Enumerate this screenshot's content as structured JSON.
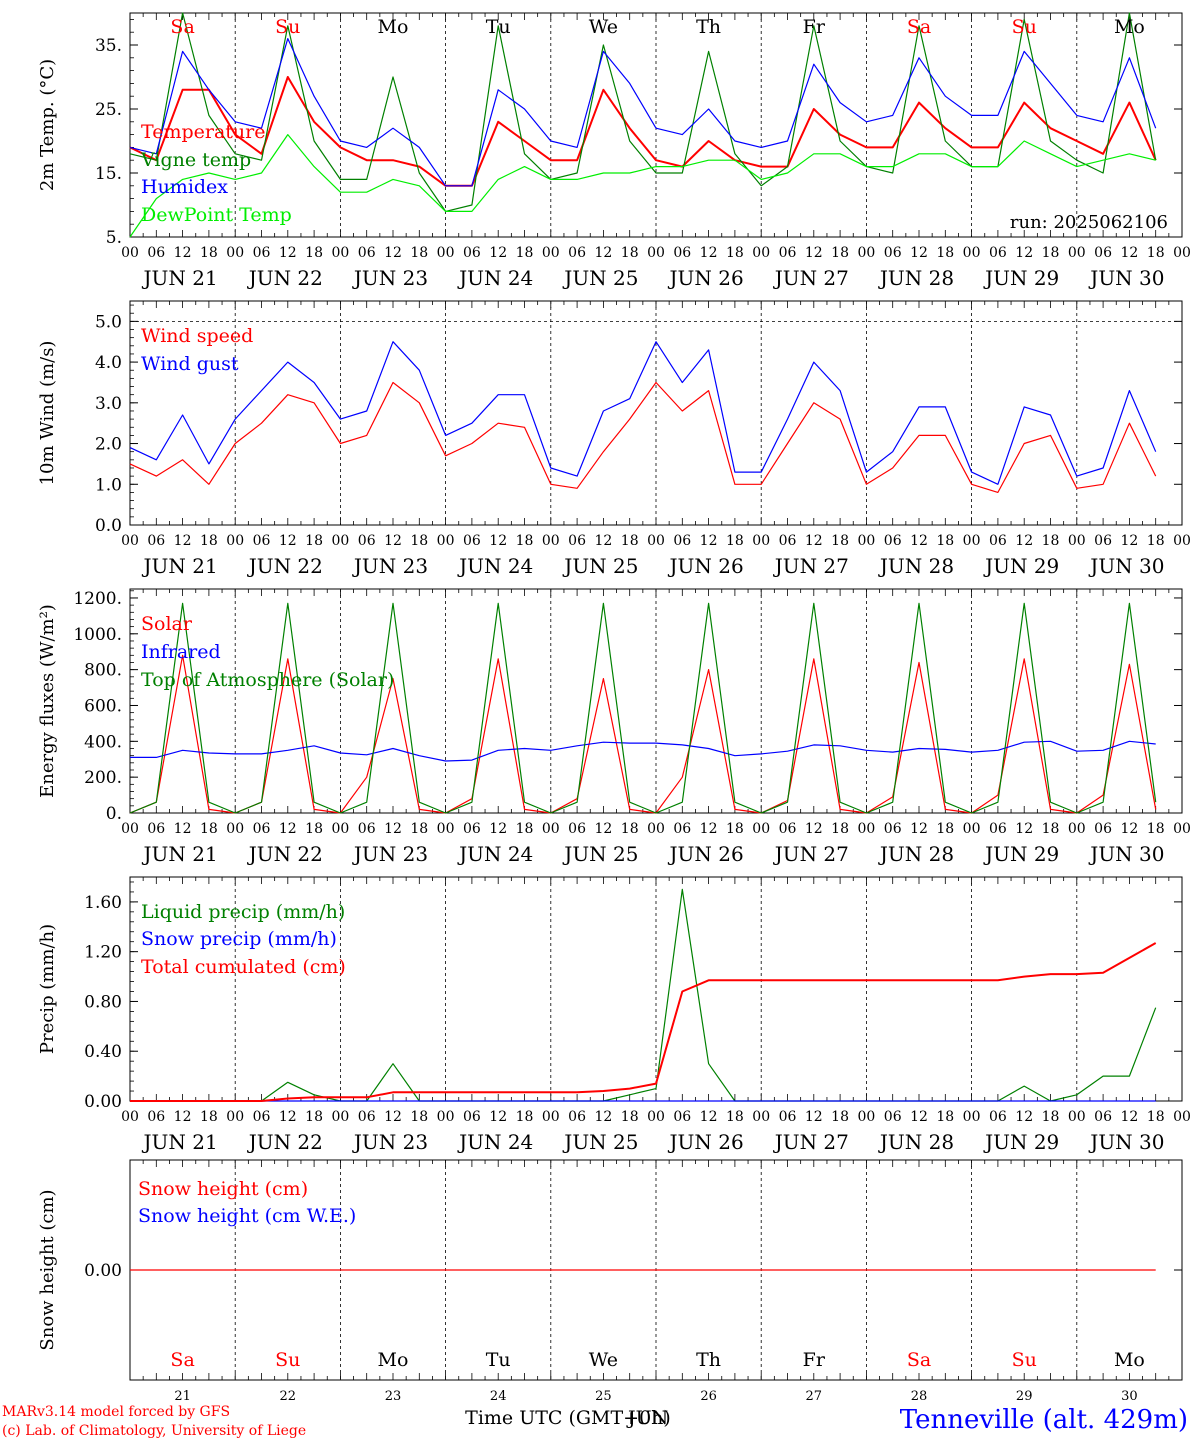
{
  "x_axis": {
    "hour_ticks": [
      "00",
      "06",
      "12",
      "18"
    ],
    "final_tick": "00",
    "days": [
      "JUN 21",
      "JUN 22",
      "JUN 23",
      "JUN 24",
      "JUN 25",
      "JUN 26",
      "JUN 27",
      "JUN 28",
      "JUN 29",
      "JUN 30"
    ],
    "weekdays": [
      "Sa",
      "Su",
      "Mo",
      "Tu",
      "We",
      "Th",
      "Fr",
      "Sa",
      "Su",
      "Mo"
    ],
    "weekend": [
      true,
      true,
      false,
      false,
      false,
      false,
      false,
      true,
      true,
      false
    ],
    "day_numbers": [
      "21",
      "22",
      "23",
      "24",
      "25",
      "26",
      "27",
      "28",
      "29",
      "30"
    ],
    "title": "Time UTC (GMT+0h)",
    "overlap_text": "JUN"
  },
  "footer": {
    "model_line": "MARv3.14 model forced by GFS",
    "credit_line": "(c) Lab. of Climatology, University of Liege",
    "station": "Tenneville (alt. 429m)"
  },
  "colors": {
    "red": "#ff0000",
    "green": "#008000",
    "blue": "#0000ff",
    "lightgreen": "#00ee00"
  },
  "chart_data": [
    {
      "id": "temp",
      "type": "line",
      "ylabel": "2m Temp. (°C)",
      "ylim": [
        5,
        40
      ],
      "yticks": [
        "5.",
        "15.",
        "25.",
        "35."
      ],
      "ytick_values": [
        5,
        15,
        25,
        35
      ],
      "run_label": "run: 2025062106",
      "x_unit": "hours since JUN 21 00 UTC, 6-hourly",
      "series": [
        {
          "name": "Temperature",
          "color": "red",
          "values": [
            19,
            17,
            28,
            28,
            21,
            18,
            30,
            23,
            19,
            17,
            17,
            16,
            13,
            13,
            23,
            20,
            17,
            17,
            28,
            22,
            17,
            16,
            20,
            17,
            16,
            16,
            25,
            21,
            19,
            19,
            26,
            22,
            19,
            19,
            26,
            22,
            20,
            18,
            26,
            17
          ]
        },
        {
          "name": "Vigne temp",
          "color": "green",
          "values": [
            18,
            17,
            40,
            24,
            18,
            17,
            38,
            20,
            14,
            14,
            30,
            15,
            9,
            10,
            38,
            18,
            14,
            15,
            35,
            20,
            15,
            15,
            34,
            18,
            13,
            16,
            38,
            20,
            16,
            15,
            38,
            20,
            16,
            16,
            39,
            20,
            17,
            15,
            40,
            17
          ]
        },
        {
          "name": "Humidex",
          "color": "blue",
          "values": [
            19,
            18,
            34,
            28,
            23,
            22,
            36,
            27,
            20,
            19,
            22,
            19,
            13,
            13,
            28,
            25,
            20,
            19,
            34,
            29,
            22,
            21,
            25,
            20,
            19,
            20,
            32,
            26,
            23,
            24,
            33,
            27,
            24,
            24,
            34,
            29,
            24,
            23,
            33,
            22
          ]
        },
        {
          "name": "DewPoint Temp",
          "color": "lightgreen",
          "values": [
            5,
            11,
            14,
            15,
            14,
            15,
            21,
            16,
            12,
            12,
            14,
            13,
            9,
            9,
            14,
            16,
            14,
            14,
            15,
            15,
            16,
            16,
            17,
            17,
            14,
            15,
            18,
            18,
            16,
            16,
            18,
            18,
            16,
            16,
            20,
            18,
            16,
            17,
            18,
            17
          ]
        }
      ]
    },
    {
      "id": "wind",
      "type": "line",
      "ylabel": "10m Wind (m/s)",
      "ylim": [
        0,
        5.5
      ],
      "yticks": [
        "0.0",
        "1.0",
        "2.0",
        "3.0",
        "4.0",
        "5.0"
      ],
      "ytick_values": [
        0,
        1,
        2,
        3,
        4,
        5
      ],
      "dashed_reference": 5,
      "series": [
        {
          "name": "Wind speed",
          "color": "red",
          "values": [
            1.5,
            1.2,
            1.6,
            1.0,
            2.0,
            2.5,
            3.2,
            3.0,
            2.0,
            2.2,
            3.5,
            3.0,
            1.7,
            2.0,
            2.5,
            2.4,
            1.0,
            0.9,
            1.8,
            2.6,
            3.5,
            2.8,
            3.3,
            1.0,
            1.0,
            2.0,
            3.0,
            2.6,
            1.0,
            1.4,
            2.2,
            2.2,
            1.0,
            0.8,
            2.0,
            2.2,
            0.9,
            1.0,
            2.5,
            1.2
          ]
        },
        {
          "name": "Wind gust",
          "color": "blue",
          "values": [
            1.9,
            1.6,
            2.7,
            1.5,
            2.6,
            3.3,
            4.0,
            3.5,
            2.6,
            2.8,
            4.5,
            3.8,
            2.2,
            2.5,
            3.2,
            3.2,
            1.4,
            1.2,
            2.8,
            3.1,
            4.5,
            3.5,
            4.3,
            1.3,
            1.3,
            2.6,
            4.0,
            3.3,
            1.3,
            1.8,
            2.9,
            2.9,
            1.3,
            1.0,
            2.9,
            2.7,
            1.2,
            1.4,
            3.3,
            1.8
          ]
        }
      ]
    },
    {
      "id": "energy",
      "type": "line",
      "ylabel": "Energy fluxes (W/m²)",
      "ylim": [
        0,
        1250
      ],
      "yticks": [
        "0.",
        "200.",
        "400.",
        "600.",
        "800.",
        "1000.",
        "1200."
      ],
      "ytick_values": [
        0,
        200,
        400,
        600,
        800,
        1000,
        1200
      ],
      "series": [
        {
          "name": "Solar",
          "color": "red",
          "values": [
            0,
            60,
            880,
            20,
            0,
            60,
            860,
            20,
            0,
            200,
            750,
            20,
            0,
            80,
            860,
            20,
            0,
            80,
            750,
            20,
            0,
            200,
            800,
            20,
            0,
            70,
            860,
            20,
            0,
            90,
            840,
            20,
            0,
            100,
            860,
            20,
            0,
            100,
            830,
            20
          ]
        },
        {
          "name": "Infrared",
          "color": "blue",
          "values": [
            310,
            310,
            350,
            335,
            330,
            330,
            350,
            375,
            335,
            325,
            360,
            320,
            290,
            295,
            350,
            360,
            350,
            375,
            395,
            390,
            390,
            380,
            360,
            320,
            330,
            345,
            380,
            375,
            350,
            340,
            360,
            355,
            340,
            350,
            395,
            400,
            345,
            350,
            400,
            385
          ]
        },
        {
          "name": "Top of Atmosphere (Solar)",
          "color": "green",
          "values": [
            0,
            60,
            1170,
            60,
            0,
            60,
            1170,
            60,
            0,
            60,
            1170,
            60,
            0,
            60,
            1170,
            60,
            0,
            60,
            1170,
            60,
            0,
            60,
            1170,
            60,
            0,
            60,
            1170,
            60,
            0,
            60,
            1170,
            60,
            0,
            60,
            1170,
            60,
            0,
            60,
            1170,
            60
          ]
        }
      ]
    },
    {
      "id": "precip",
      "type": "line",
      "ylabel": "Precip (mm/h)",
      "ylim": [
        0,
        1.8
      ],
      "yticks": [
        "0.00",
        "0.40",
        "0.80",
        "1.20",
        "1.60"
      ],
      "ytick_values": [
        0,
        0.4,
        0.8,
        1.2,
        1.6
      ],
      "series": [
        {
          "name": "Liquid precip (mm/h)",
          "color": "green",
          "values": [
            0,
            0,
            0,
            0,
            0,
            0,
            0.15,
            0.05,
            0,
            0,
            0.3,
            0,
            0,
            0,
            0,
            0,
            0,
            0,
            0,
            0.05,
            0.1,
            1.7,
            0.3,
            0,
            0,
            0,
            0,
            0,
            0,
            0,
            0,
            0,
            0,
            0,
            0.12,
            0,
            0.05,
            0.2,
            0.2,
            0.75
          ]
        },
        {
          "name": "Snow precip (mm/h)",
          "color": "blue",
          "values": [
            0,
            0,
            0,
            0,
            0,
            0,
            0,
            0,
            0,
            0,
            0,
            0,
            0,
            0,
            0,
            0,
            0,
            0,
            0,
            0,
            0,
            0,
            0,
            0,
            0,
            0,
            0,
            0,
            0,
            0,
            0,
            0,
            0,
            0,
            0,
            0,
            0,
            0,
            0,
            0
          ]
        },
        {
          "name": "Total cumulated (cm)",
          "color": "red",
          "values": [
            0,
            0,
            0,
            0,
            0,
            0,
            0.02,
            0.03,
            0.03,
            0.03,
            0.07,
            0.07,
            0.07,
            0.07,
            0.07,
            0.07,
            0.07,
            0.07,
            0.08,
            0.1,
            0.14,
            0.88,
            0.97,
            0.97,
            0.97,
            0.97,
            0.97,
            0.97,
            0.97,
            0.97,
            0.97,
            0.97,
            0.97,
            0.97,
            1.0,
            1.02,
            1.02,
            1.03,
            1.15,
            1.27
          ]
        }
      ]
    },
    {
      "id": "snow",
      "type": "line",
      "ylabel": "Snow height (cm)",
      "ylim": [
        -1,
        1
      ],
      "yticks": [
        "0.00"
      ],
      "ytick_values": [
        0
      ],
      "series": [
        {
          "name": "Snow height (cm)",
          "color": "red",
          "values": [
            0,
            0,
            0,
            0,
            0,
            0,
            0,
            0,
            0,
            0,
            0,
            0,
            0,
            0,
            0,
            0,
            0,
            0,
            0,
            0,
            0,
            0,
            0,
            0,
            0,
            0,
            0,
            0,
            0,
            0,
            0,
            0,
            0,
            0,
            0,
            0,
            0,
            0,
            0,
            0
          ]
        },
        {
          "name": "Snow height (cm W.E.)",
          "color": "blue",
          "values": []
        }
      ]
    }
  ]
}
